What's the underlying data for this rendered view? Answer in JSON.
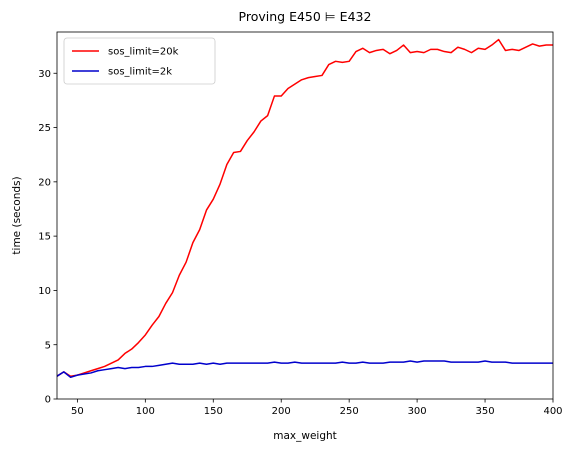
{
  "chart_data": {
    "type": "line",
    "title": "Proving E450 ⊨ E432",
    "xlabel": "max_weight",
    "ylabel": "time (seconds)",
    "xlim": [
      35,
      400
    ],
    "ylim": [
      0,
      33.8
    ],
    "xticks": [
      50,
      100,
      150,
      200,
      250,
      300,
      350,
      400
    ],
    "yticks": [
      0,
      5,
      10,
      15,
      20,
      25,
      30
    ],
    "grid": false,
    "legend_position": "top-left",
    "x": [
      35,
      40,
      45,
      50,
      55,
      60,
      65,
      70,
      75,
      80,
      85,
      90,
      95,
      100,
      105,
      110,
      115,
      120,
      125,
      130,
      135,
      140,
      145,
      150,
      155,
      160,
      165,
      170,
      175,
      180,
      185,
      190,
      195,
      200,
      205,
      210,
      215,
      220,
      225,
      230,
      235,
      240,
      245,
      250,
      255,
      260,
      265,
      270,
      275,
      280,
      285,
      290,
      295,
      300,
      305,
      310,
      315,
      320,
      325,
      330,
      335,
      340,
      345,
      350,
      355,
      360,
      365,
      370,
      375,
      380,
      385,
      390,
      395,
      400
    ],
    "series": [
      {
        "name": "sos_limit=20k",
        "color": "#ff0000",
        "values": [
          2.1,
          2.5,
          2.1,
          2.2,
          2.4,
          2.6,
          2.8,
          3.0,
          3.3,
          3.6,
          4.2,
          4.6,
          5.2,
          5.9,
          6.8,
          7.6,
          8.8,
          9.8,
          11.4,
          12.6,
          14.4,
          15.6,
          17.4,
          18.4,
          19.8,
          21.6,
          22.7,
          22.8,
          23.8,
          24.6,
          25.6,
          26.1,
          27.9,
          27.9,
          28.6,
          29.0,
          29.4,
          29.6,
          29.7,
          29.8,
          30.8,
          31.1,
          31.0,
          31.1,
          32.0,
          32.3,
          31.9,
          32.1,
          32.2,
          31.8,
          32.1,
          32.6,
          31.9,
          32.0,
          31.9,
          32.2,
          32.2,
          32.0,
          31.9,
          32.4,
          32.2,
          31.9,
          32.3,
          32.2,
          32.6,
          33.1,
          32.1,
          32.2,
          32.1,
          32.4,
          32.7,
          32.5,
          32.6,
          32.6
        ]
      },
      {
        "name": "sos_limit=2k",
        "color": "#0000cc",
        "values": [
          2.1,
          2.5,
          2.0,
          2.2,
          2.3,
          2.4,
          2.6,
          2.7,
          2.8,
          2.9,
          2.8,
          2.9,
          2.9,
          3.0,
          3.0,
          3.1,
          3.2,
          3.3,
          3.2,
          3.2,
          3.2,
          3.3,
          3.2,
          3.3,
          3.2,
          3.3,
          3.3,
          3.3,
          3.3,
          3.3,
          3.3,
          3.3,
          3.4,
          3.3,
          3.3,
          3.4,
          3.3,
          3.3,
          3.3,
          3.3,
          3.3,
          3.3,
          3.4,
          3.3,
          3.3,
          3.4,
          3.3,
          3.3,
          3.3,
          3.4,
          3.4,
          3.4,
          3.5,
          3.4,
          3.5,
          3.5,
          3.5,
          3.5,
          3.4,
          3.4,
          3.4,
          3.4,
          3.4,
          3.5,
          3.4,
          3.4,
          3.4,
          3.3,
          3.3,
          3.3,
          3.3,
          3.3,
          3.3,
          3.3
        ]
      }
    ]
  }
}
